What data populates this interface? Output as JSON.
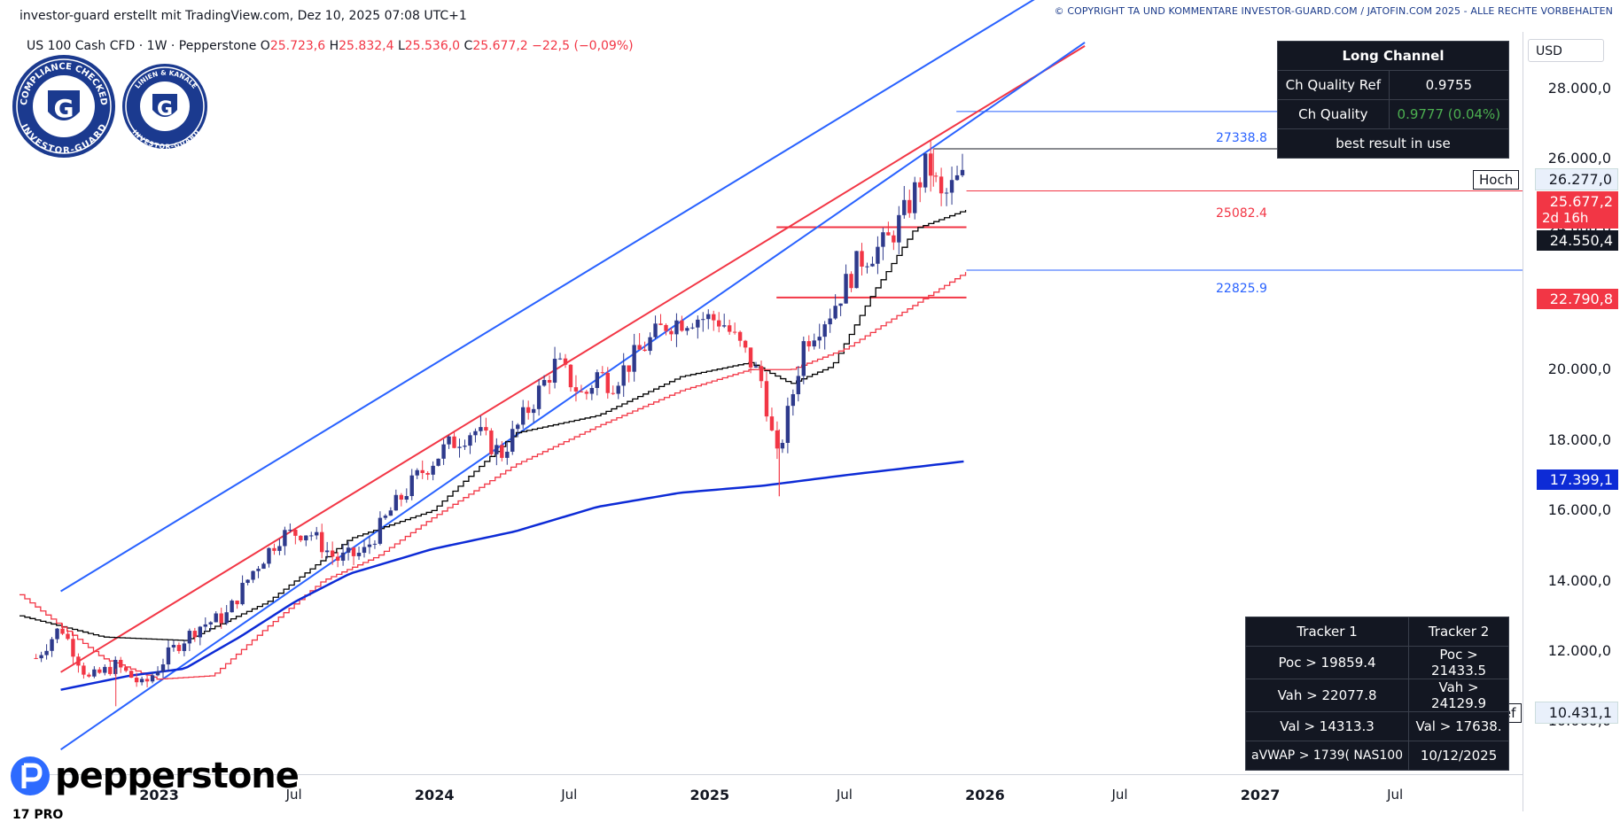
{
  "header": {
    "credit": "investor-guard erstellt mit TradingView.com, Dez 10, 2025 07:08 UTC+1",
    "copyright": "© COPYRIGHT TA UND KOMMENTARE INVESTOR-GUARD.COM / JATOFIN.COM 2025 - ALLE RECHTE VORBEHALTEN"
  },
  "symbol": {
    "name": "US 100 Cash CFD · 1W · Pepperstone",
    "open_label": "O",
    "open": "25.723,6",
    "high_label": "H",
    "high": "25.832,4",
    "low_label": "L",
    "low": "25.536,0",
    "close_label": "C",
    "close": "25.677,2",
    "change": "−22,5 (−0,09%)"
  },
  "badges": {
    "left_top": "COMPLIANCE CHECKED",
    "left_bottom": "INVESTOR-GUARD",
    "right_top": "LINIEN & KANÄLE",
    "right_bottom": "INVESTOR-GUARD",
    "letter": "G"
  },
  "channel_panel": {
    "title": "Long Channel",
    "rows": [
      {
        "label": "Ch Quality Ref",
        "value": "0.9755"
      },
      {
        "label": "Ch Quality",
        "value": "0.9777 (0.04%)"
      }
    ],
    "footer": "best result in use"
  },
  "tracker_panel": {
    "headers": [
      "Tracker 1",
      "Tracker 2"
    ],
    "rows": [
      [
        "Poc > 19859.4",
        "Poc > 21433.5"
      ],
      [
        "Vah > 22077.8",
        "Vah > 24129.9"
      ],
      [
        "Val > 14313.3",
        "Val > 17638."
      ],
      [
        "aVWAP > 1739( NAS100",
        "10/12/2025"
      ]
    ]
  },
  "currency": "USD",
  "price_tags": {
    "hoch_label": "Hoch",
    "hoch_value": "26.277,0",
    "last": "25.677,2",
    "countdown": "2d 16h",
    "black_ma": "24.550,4",
    "red_ma": "22.790,8",
    "blue_ma": "17.399,1",
    "tief_label": "Tief",
    "tief_value": "10.431,1"
  },
  "level_labels": {
    "l1": "27338.8",
    "l2": "25082.4",
    "l3": "22825.9"
  },
  "branding": {
    "logo": "pepperstone",
    "tv": "17 PRO"
  },
  "colors": {
    "up": "#2e3a8c",
    "down": "#f23645",
    "channel_blue": "#2962ff",
    "channel_red": "#f23645",
    "ma_black": "#000000",
    "ma_blue": "#0d2bd6",
    "panel": "#131722"
  },
  "chart_data": {
    "type": "line",
    "title": "US 100 Cash CFD · 1W · Pepperstone",
    "xlabel": "",
    "ylabel": "USD",
    "ylim": [
      8500,
      29500
    ],
    "y_ticks": [
      10000,
      12000,
      14000,
      16000,
      18000,
      20000,
      22000,
      24000,
      26000,
      28000
    ],
    "y_tick_labels": [
      "10.000,0",
      "12.000,0",
      "14.000,0",
      "16.000,0",
      "18.000,0",
      "20.000,0",
      "22.000,0",
      "24.000,0",
      "26.000,0",
      "28.000,0"
    ],
    "x_ticks": [
      "2023",
      "Jul",
      "2024",
      "Jul",
      "2025",
      "Jul",
      "2026",
      "Jul",
      "2027",
      "Jul"
    ],
    "x_tick_t": [
      2023.0,
      2023.5,
      2024.0,
      2024.5,
      2025.0,
      2025.5,
      2026.0,
      2026.5,
      2027.0,
      2027.5
    ],
    "xlim": [
      2022.5,
      2027.96
    ],
    "series": [
      {
        "name": "Price (close)",
        "t": [
          2022.56,
          2022.65,
          2022.75,
          2022.85,
          2022.95,
          2023.05,
          2023.15,
          2023.25,
          2023.35,
          2023.45,
          2023.55,
          2023.65,
          2023.75,
          2023.85,
          2023.95,
          2024.05,
          2024.15,
          2024.25,
          2024.35,
          2024.45,
          2024.55,
          2024.6,
          2024.65,
          2024.75,
          2024.85,
          2024.95,
          2025.05,
          2025.15,
          2025.2,
          2025.25,
          2025.3,
          2025.35,
          2025.45,
          2025.55,
          2025.65,
          2025.72,
          2025.8,
          2025.85,
          2025.9,
          2025.94
        ],
        "values": [
          11800,
          12700,
          11200,
          11600,
          11000,
          12000,
          12700,
          13000,
          14300,
          15300,
          15400,
          14600,
          14800,
          16000,
          17000,
          17800,
          18300,
          17600,
          18900,
          20200,
          19200,
          19900,
          19600,
          20500,
          21300,
          21500,
          21400,
          20300,
          19600,
          17400,
          19000,
          20800,
          21700,
          23100,
          23600,
          24500,
          25900,
          24800,
          25300,
          25677
        ]
      },
      {
        "name": "Black MA",
        "t": [
          2022.5,
          2022.8,
          2023.1,
          2023.4,
          2023.7,
          2024.0,
          2024.3,
          2024.6,
          2024.9,
          2025.15,
          2025.3,
          2025.45,
          2025.6,
          2025.75,
          2025.94
        ],
        "values": [
          13000,
          12400,
          12300,
          13400,
          15200,
          16000,
          18200,
          18700,
          19800,
          20200,
          19600,
          20100,
          22200,
          24000,
          24550
        ]
      },
      {
        "name": "Red MA",
        "t": [
          2022.5,
          2022.8,
          2023.0,
          2023.2,
          2023.4,
          2023.6,
          2023.8,
          2024.0,
          2024.3,
          2024.6,
          2024.9,
          2025.15,
          2025.3,
          2025.5,
          2025.7,
          2025.94
        ],
        "values": [
          13600,
          11800,
          11200,
          11300,
          12700,
          14000,
          14700,
          15800,
          17300,
          18400,
          19400,
          20000,
          20000,
          20600,
          21600,
          22790
        ]
      },
      {
        "name": "Blue MA",
        "t": [
          2022.65,
          2022.9,
          2023.1,
          2023.3,
          2023.5,
          2023.7,
          2024.0,
          2024.3,
          2024.6,
          2024.9,
          2025.2,
          2025.5,
          2025.94
        ],
        "values": [
          10900,
          11300,
          11500,
          12400,
          13400,
          14200,
          14900,
          15400,
          16100,
          16500,
          16700,
          17000,
          17399
        ]
      },
      {
        "name": "Channel Upper",
        "t": [
          2022.65,
          2026.37
        ],
        "values": [
          13700,
          31400
        ]
      },
      {
        "name": "Channel Middle",
        "t": [
          2022.65,
          2026.37
        ],
        "values": [
          11400,
          29200
        ]
      },
      {
        "name": "Channel Lower",
        "t": [
          2022.65,
          2026.37
        ],
        "values": [
          9200,
          29300
        ]
      }
    ],
    "levels": [
      {
        "label": "27338.8",
        "value": 27338.8
      },
      {
        "label": "25082.4",
        "value": 25082.4
      },
      {
        "label": "22825.9",
        "value": 22825.9
      },
      {
        "label": "Hoch",
        "value": 26277.0
      }
    ]
  }
}
